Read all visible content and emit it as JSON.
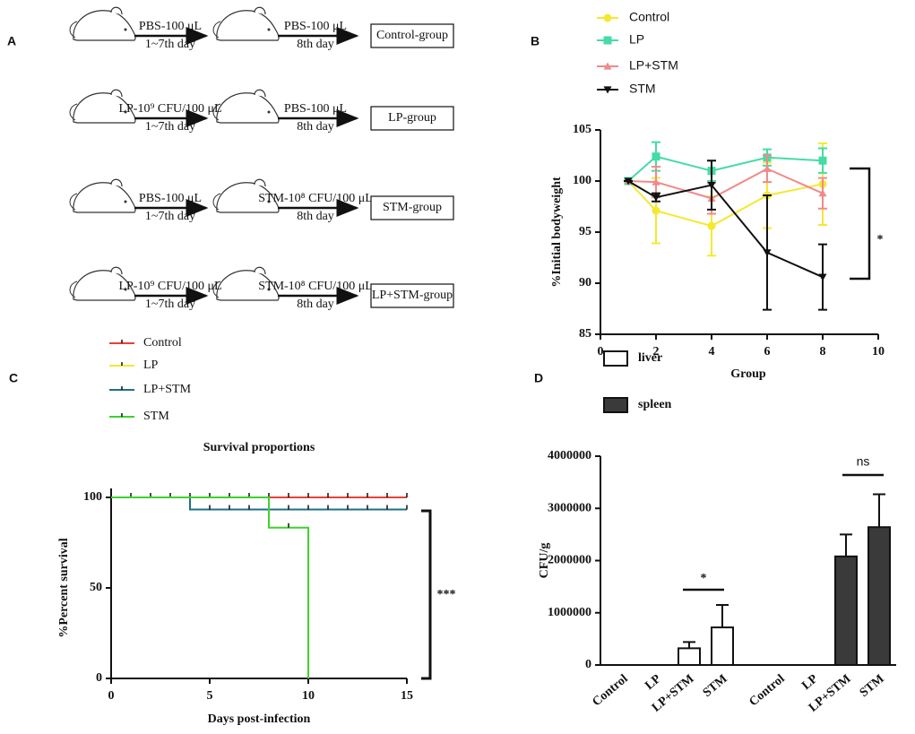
{
  "diagram": {
    "label": "A",
    "rows": [
      {
        "first": "PBS-100 μL",
        "first_days": "1~7th day",
        "second": "PBS-100 μL",
        "second_days": "8th day",
        "group": "Control-group"
      },
      {
        "first": "LP-10⁹ CFU/100 μL",
        "first_days": "1~7th day",
        "second": "PBS-100 μL",
        "second_days": "8th day",
        "group": "LP-group"
      },
      {
        "first": "PBS-100 μL",
        "first_days": "1~7th day",
        "second": "STM-10⁸ CFU/100 μL",
        "second_days": "8th day",
        "group": "STM-group"
      },
      {
        "first": "LP-10⁹ CFU/100 μL",
        "first_days": "1~7th day",
        "second": "STM-10⁸ CFU/100 μL",
        "second_days": "8th day",
        "group": "LP+STM-group"
      }
    ]
  },
  "chart_data": [
    {
      "type": "line",
      "label": "B",
      "xlabel": "Group",
      "ylabel": "%Initial bodyweight",
      "x": [
        1,
        2,
        4,
        6,
        8
      ],
      "xlim": [
        0,
        10
      ],
      "xticks": [
        0,
        2,
        4,
        6,
        8,
        10
      ],
      "ylim": [
        85,
        105
      ],
      "yticks": [
        85,
        90,
        95,
        100,
        105
      ],
      "series": [
        {
          "name": "Control",
          "color": "#f5e830",
          "marker": "circle",
          "values": [
            100,
            97.1,
            95.6,
            98.6,
            99.7
          ],
          "errors": [
            0,
            3.2,
            2.9,
            3.2,
            4
          ]
        },
        {
          "name": "LP",
          "color": "#45dba6",
          "marker": "square",
          "values": [
            100,
            102.4,
            101,
            102.3,
            102
          ],
          "errors": [
            0,
            1.4,
            1,
            0.8,
            1.2
          ]
        },
        {
          "name": "LP+STM",
          "color": "#f08a8a",
          "marker": "triangle-up",
          "values": [
            100,
            99.9,
            98.3,
            101.2,
            98.8
          ],
          "errors": [
            0,
            1.5,
            1.5,
            1.3,
            1.5
          ]
        },
        {
          "name": "STM",
          "color": "#111111",
          "marker": "triangle-down",
          "values": [
            100,
            98.4,
            99.6,
            93,
            90.6
          ],
          "errors": [
            0,
            0.4,
            2.4,
            5.6,
            3.2
          ]
        }
      ],
      "annotations": [
        "*"
      ]
    },
    {
      "type": "survival",
      "label": "C",
      "title": "Survival proportions",
      "xlabel": "Days post-infection",
      "ylabel": "%Percent survival",
      "xlim": [
        0,
        15
      ],
      "xticks": [
        0,
        5,
        10,
        15
      ],
      "ylim": [
        0,
        100
      ],
      "yticks": [
        0,
        50,
        100
      ],
      "series": [
        {
          "name": "Control",
          "color": "#e8413a",
          "x": [
            0,
            15
          ],
          "values": [
            100,
            100
          ],
          "censored": [
            1,
            2,
            3,
            4,
            5,
            6,
            7,
            8,
            9,
            10,
            11,
            12,
            13,
            14,
            15
          ]
        },
        {
          "name": "LP",
          "color": "#f5e830",
          "x": [
            0,
            15
          ],
          "values": [
            100,
            100
          ],
          "censored": []
        },
        {
          "name": "LP+STM",
          "color": "#1f6f8b",
          "x": [
            0,
            4,
            15
          ],
          "values": [
            100,
            93.3,
            93.3
          ],
          "censored": [
            5,
            6,
            7,
            8,
            9,
            10,
            11,
            12,
            13,
            14,
            15
          ]
        },
        {
          "name": "STM",
          "color": "#3fd22f",
          "x": [
            0,
            8,
            10
          ],
          "values": [
            100,
            83.3,
            0
          ],
          "censored": [
            9
          ]
        }
      ],
      "annotations": [
        "***"
      ]
    },
    {
      "type": "bar",
      "label": "D",
      "ylabel": "CFU/g",
      "categories": [
        "Control",
        "LP",
        "LP+STM",
        "STM"
      ],
      "ylim": [
        0,
        4000000
      ],
      "yticks": [
        0,
        1000000,
        2000000,
        3000000,
        4000000
      ],
      "series": [
        {
          "name": "liver",
          "color": "#ffffff",
          "values": [
            0,
            0,
            320000,
            720000
          ],
          "errors": [
            0,
            0,
            120000,
            430000
          ]
        },
        {
          "name": "spleen",
          "color": "#3a3a3a",
          "values": [
            0,
            0,
            2080000,
            2640000
          ],
          "errors": [
            0,
            0,
            420000,
            630000
          ]
        }
      ],
      "annotations": [
        "*",
        "ns"
      ]
    }
  ]
}
